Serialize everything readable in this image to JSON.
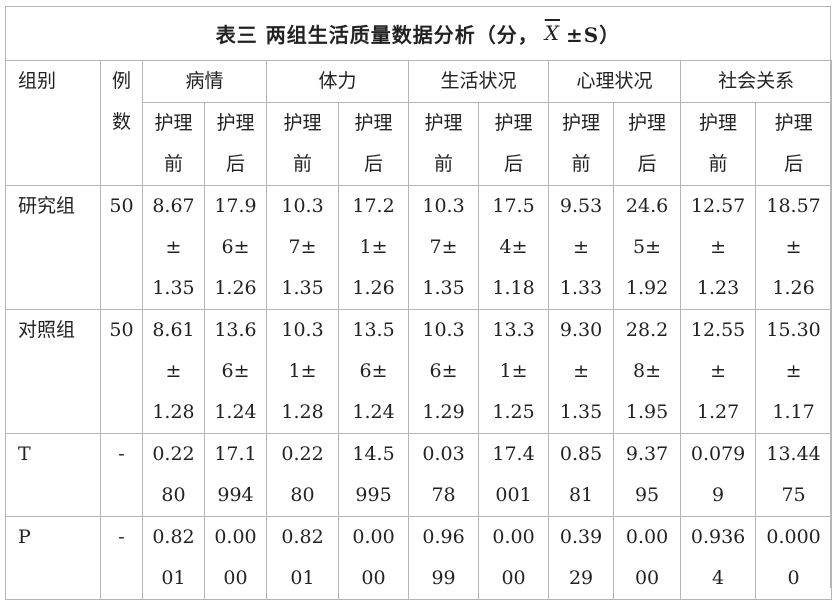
{
  "table": {
    "caption": {
      "prefix": "表三 两组生活质量数据分析（分，",
      "symbol": "X",
      "suffix": "±S）"
    },
    "header": {
      "group": "组别",
      "count": [
        "例",
        "数"
      ],
      "metrics": [
        "病情",
        "体力",
        "生活状况",
        "心理状况",
        "社会关系"
      ],
      "sub_before": [
        "护理",
        "前"
      ],
      "sub_after": [
        "护理",
        "后"
      ]
    },
    "rows": [
      {
        "label": "研究组",
        "n": "50",
        "cells": [
          [
            "8.67",
            "±",
            "1.35"
          ],
          [
            "17.9",
            "6±",
            "1.26"
          ],
          [
            "10.3",
            "7±",
            "1.35"
          ],
          [
            "17.2",
            "1±",
            "1.26"
          ],
          [
            "10.3",
            "7±",
            "1.35"
          ],
          [
            "17.5",
            "4±",
            "1.18"
          ],
          [
            "9.53",
            "±",
            "1.33"
          ],
          [
            "24.6",
            "5±",
            "1.92"
          ],
          [
            "12.57",
            "±",
            "1.23"
          ],
          [
            "18.57",
            "±",
            "1.26"
          ]
        ]
      },
      {
        "label": "对照组",
        "n": "50",
        "cells": [
          [
            "8.61",
            "±",
            "1.28"
          ],
          [
            "13.6",
            "6±",
            "1.24"
          ],
          [
            "10.3",
            "1±",
            "1.28"
          ],
          [
            "13.5",
            "6±",
            "1.24"
          ],
          [
            "10.3",
            "6±",
            "1.29"
          ],
          [
            "13.3",
            "1±",
            "1.25"
          ],
          [
            "9.30",
            "±",
            "1.35"
          ],
          [
            "28.2",
            "8±",
            "1.95"
          ],
          [
            "12.55",
            "±",
            "1.27"
          ],
          [
            "15.30",
            "±",
            "1.17"
          ]
        ]
      },
      {
        "label": "T",
        "n": "-",
        "cells": [
          [
            "0.22",
            "80"
          ],
          [
            "17.1",
            "994"
          ],
          [
            "0.22",
            "80"
          ],
          [
            "14.5",
            "995"
          ],
          [
            "0.03",
            "78"
          ],
          [
            "17.4",
            "001"
          ],
          [
            "0.85",
            "81"
          ],
          [
            "9.37",
            "95"
          ],
          [
            "0.079",
            "9"
          ],
          [
            "13.44",
            "75"
          ]
        ]
      },
      {
        "label": "P",
        "n": "-",
        "cells": [
          [
            "0.82",
            "01"
          ],
          [
            "0.00",
            "00"
          ],
          [
            "0.82",
            "01"
          ],
          [
            "0.00",
            "00"
          ],
          [
            "0.96",
            "99"
          ],
          [
            "0.00",
            "00"
          ],
          [
            "0.39",
            "29"
          ],
          [
            "0.00",
            "00"
          ],
          [
            "0.936",
            "4"
          ],
          [
            "0.000",
            "0"
          ]
        ]
      }
    ]
  }
}
